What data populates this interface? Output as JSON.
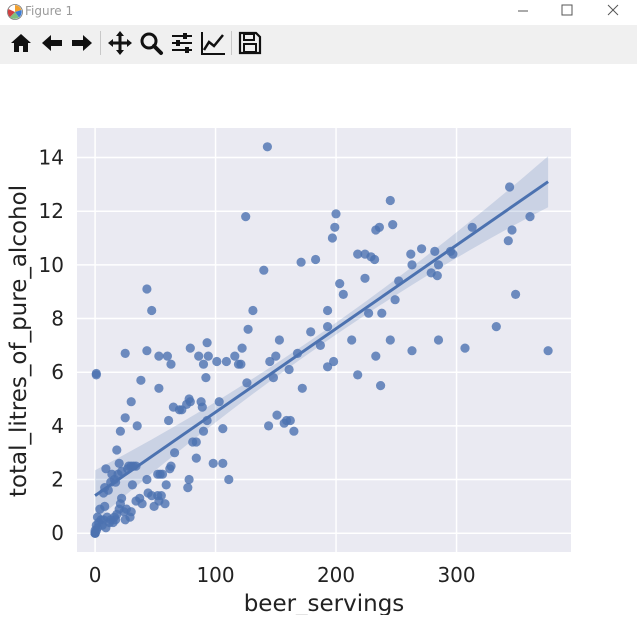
{
  "window": {
    "title": "Figure 1",
    "icon": "matplotlib-logo-icon",
    "controls": [
      "minimize-icon",
      "maximize-icon",
      "close-icon"
    ]
  },
  "toolbar": {
    "buttons": [
      {
        "name": "home-button",
        "icon": "home-icon"
      },
      {
        "name": "back-button",
        "icon": "arrow-left-icon"
      },
      {
        "name": "forward-button",
        "icon": "arrow-right-icon"
      },
      {
        "name": "pan-button",
        "icon": "move-icon"
      },
      {
        "name": "zoom-button",
        "icon": "magnifier-icon"
      },
      {
        "name": "subplots-button",
        "icon": "sliders-icon"
      },
      {
        "name": "edit-axis-button",
        "icon": "line-chart-icon"
      },
      {
        "name": "save-button",
        "icon": "floppy-disk-icon"
      }
    ]
  },
  "chart_data": {
    "type": "scatter",
    "style": "seaborn regplot (scatter with linear fit and 95% confidence band)",
    "xlabel": "beer_servings",
    "ylabel": "total_litres_of_pure_alcohol",
    "xlim": [
      -15,
      395
    ],
    "ylim": [
      -0.7,
      15.1
    ],
    "xticks": [
      0,
      100,
      200,
      300
    ],
    "yticks": [
      0,
      2,
      4,
      6,
      8,
      10,
      12,
      14
    ],
    "grid": true,
    "colors": {
      "background": "#eaeaf2",
      "grid": "#ffffff",
      "points": "#4c72b0",
      "line": "#4c72b0",
      "band": "#4c72b0"
    },
    "regression": {
      "x": [
        0,
        376
      ],
      "y": [
        1.4,
        13.1
      ]
    },
    "points": [
      [
        0,
        0
      ],
      [
        0,
        0
      ],
      [
        0,
        0
      ],
      [
        0,
        0
      ],
      [
        0,
        0.1
      ],
      [
        1,
        0.1
      ],
      [
        2,
        0.2
      ],
      [
        1,
        0.3
      ],
      [
        3,
        0.4
      ],
      [
        5,
        0.5
      ],
      [
        2,
        0.6
      ],
      [
        4,
        0.9
      ],
      [
        8,
        1.0
      ],
      [
        1,
        5.9
      ],
      [
        1,
        5.95
      ],
      [
        6,
        0.3
      ],
      [
        7,
        0.5
      ],
      [
        9,
        0.2
      ],
      [
        10,
        0.6
      ],
      [
        12,
        0.4
      ],
      [
        13,
        0.5
      ],
      [
        15,
        0.4
      ],
      [
        16,
        0.6
      ],
      [
        17,
        0.5
      ],
      [
        18,
        0.7
      ],
      [
        20,
        0.9
      ],
      [
        21,
        1.1
      ],
      [
        22,
        1.3
      ],
      [
        25,
        0.5
      ],
      [
        24,
        0.8
      ],
      [
        26,
        0.9
      ],
      [
        29,
        0.6
      ],
      [
        30,
        0.8
      ],
      [
        34,
        1.2
      ],
      [
        37,
        1.3
      ],
      [
        39,
        1.1
      ],
      [
        7,
        1.5
      ],
      [
        8,
        1.7
      ],
      [
        11,
        1.6
      ],
      [
        13,
        1.9
      ],
      [
        14,
        2.2
      ],
      [
        16,
        2.0
      ],
      [
        17,
        1.9
      ],
      [
        19,
        2.2
      ],
      [
        20,
        2.6
      ],
      [
        22,
        2.3
      ],
      [
        27,
        2.4
      ],
      [
        28,
        2.5
      ],
      [
        30,
        2.5
      ],
      [
        32,
        2.5
      ],
      [
        34,
        2.5
      ],
      [
        31,
        1.8
      ],
      [
        9,
        2.4
      ],
      [
        18,
        3.1
      ],
      [
        21,
        3.8
      ],
      [
        25,
        4.3
      ],
      [
        30,
        4.9
      ],
      [
        35,
        4.0
      ],
      [
        38,
        5.7
      ],
      [
        25,
        6.7
      ],
      [
        43,
        2.0
      ],
      [
        44,
        1.5
      ],
      [
        47,
        1.4
      ],
      [
        49,
        1.0
      ],
      [
        52,
        1.4
      ],
      [
        53,
        1.2
      ],
      [
        55,
        1.4
      ],
      [
        58,
        1.1
      ],
      [
        52,
        2.2
      ],
      [
        54,
        2.2
      ],
      [
        56,
        2.2
      ],
      [
        59,
        1.8
      ],
      [
        62,
        2.4
      ],
      [
        63,
        2.5
      ],
      [
        66,
        3.0
      ],
      [
        61,
        4.2
      ],
      [
        65,
        4.7
      ],
      [
        70,
        4.6
      ],
      [
        72,
        4.6
      ],
      [
        76,
        4.8
      ],
      [
        78,
        5.0
      ],
      [
        79,
        4.9
      ],
      [
        53,
        5.4
      ],
      [
        53,
        6.6
      ],
      [
        60,
        6.6
      ],
      [
        63,
        6.3
      ],
      [
        43,
        6.8
      ],
      [
        47,
        8.3
      ],
      [
        43,
        9.1
      ],
      [
        77,
        1.7
      ],
      [
        78,
        2.0
      ],
      [
        81,
        3.4
      ],
      [
        84,
        2.8
      ],
      [
        84,
        3.4
      ],
      [
        90,
        3.8
      ],
      [
        93,
        4.2
      ],
      [
        89,
        4.7
      ],
      [
        88,
        4.9
      ],
      [
        92,
        5.8
      ],
      [
        90,
        6.3
      ],
      [
        86,
        6.6
      ],
      [
        94,
        6.6
      ],
      [
        79,
        6.9
      ],
      [
        93,
        7.1
      ],
      [
        98,
        2.6
      ],
      [
        106,
        2.6
      ],
      [
        106,
        3.9
      ],
      [
        103,
        4.9
      ],
      [
        111,
        2.0
      ],
      [
        101,
        6.4
      ],
      [
        109,
        6.4
      ],
      [
        116,
        6.6
      ],
      [
        119,
        6.3
      ],
      [
        121,
        6.3
      ],
      [
        122,
        6.9
      ],
      [
        126,
        5.6
      ],
      [
        127,
        7.6
      ],
      [
        131,
        8.3
      ],
      [
        125,
        11.8
      ],
      [
        140,
        9.8
      ],
      [
        144,
        4.0
      ],
      [
        145,
        6.4
      ],
      [
        148,
        5.8
      ],
      [
        150,
        6.6
      ],
      [
        151,
        4.4
      ],
      [
        153,
        7.2
      ],
      [
        157,
        4.1
      ],
      [
        159,
        4.2
      ],
      [
        162,
        4.2
      ],
      [
        161,
        6.1
      ],
      [
        165,
        3.8
      ],
      [
        168,
        6.7
      ],
      [
        172,
        5.4
      ],
      [
        171,
        10.1
      ],
      [
        179,
        7.5
      ],
      [
        183,
        10.2
      ],
      [
        187,
        7.0
      ],
      [
        193,
        8.3
      ],
      [
        193,
        7.7
      ],
      [
        193,
        6.2
      ],
      [
        198,
        6.4
      ],
      [
        197,
        11.0
      ],
      [
        199,
        11.4
      ],
      [
        200,
        11.9
      ],
      [
        203,
        9.3
      ],
      [
        206,
        8.9
      ],
      [
        143,
        14.4
      ],
      [
        213,
        7.2
      ],
      [
        218,
        5.9
      ],
      [
        218,
        10.4
      ],
      [
        224,
        9.5
      ],
      [
        224,
        10.4
      ],
      [
        227,
        8.2
      ],
      [
        229,
        10.3
      ],
      [
        232,
        10.2
      ],
      [
        233,
        6.6
      ],
      [
        233,
        11.3
      ],
      [
        236,
        11.4
      ],
      [
        237,
        5.5
      ],
      [
        238,
        8.2
      ],
      [
        245,
        7.2
      ],
      [
        245,
        12.4
      ],
      [
        247,
        11.5
      ],
      [
        249,
        8.7
      ],
      [
        252,
        9.4
      ],
      [
        262,
        10.4
      ],
      [
        263,
        6.8
      ],
      [
        263,
        10.0
      ],
      [
        271,
        10.6
      ],
      [
        279,
        9.7
      ],
      [
        282,
        10.5
      ],
      [
        284,
        9.6
      ],
      [
        285,
        7.2
      ],
      [
        285,
        10.0
      ],
      [
        295,
        10.5
      ],
      [
        297,
        10.4
      ],
      [
        307,
        6.9
      ],
      [
        313,
        11.4
      ],
      [
        333,
        7.7
      ],
      [
        343,
        10.9
      ],
      [
        344,
        12.9
      ],
      [
        346,
        11.3
      ],
      [
        349,
        8.9
      ],
      [
        361,
        11.8
      ],
      [
        376,
        6.8
      ]
    ]
  }
}
